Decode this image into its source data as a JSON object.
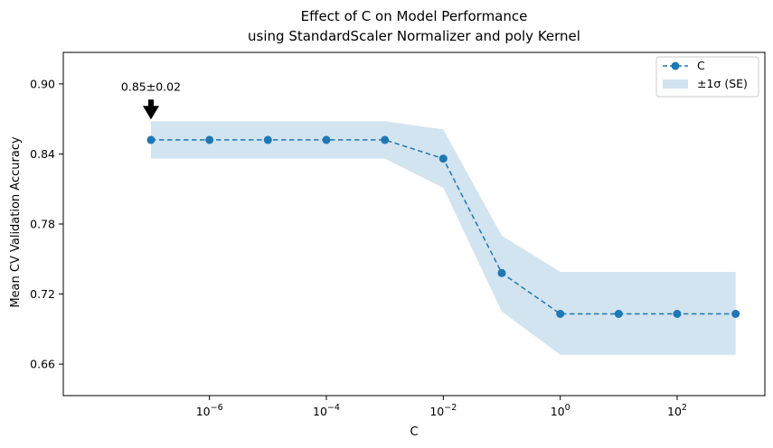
{
  "chart_data": {
    "type": "line",
    "title_lines": [
      "Effect of C on Model Performance",
      "using StandardScaler Normalizer and poly Kernel"
    ],
    "xlabel": "C",
    "ylabel": "Mean CV Validation Accuracy",
    "x_scale": "log",
    "xlim_exp": [
      -8.5,
      3.5
    ],
    "ylim": [
      0.633,
      0.927
    ],
    "x_ticks": [
      {
        "exp": -6,
        "base": "10",
        "sup": "−6"
      },
      {
        "exp": -4,
        "base": "10",
        "sup": "−4"
      },
      {
        "exp": -2,
        "base": "10",
        "sup": "−2"
      },
      {
        "exp": 0,
        "base": "10",
        "sup": "0"
      },
      {
        "exp": 2,
        "base": "10",
        "sup": "2"
      }
    ],
    "y_ticks": [
      {
        "value": 0.66,
        "label": "0.66"
      },
      {
        "value": 0.72,
        "label": "0.72"
      },
      {
        "value": 0.78,
        "label": "0.78"
      },
      {
        "value": 0.84,
        "label": "0.84"
      },
      {
        "value": 0.9,
        "label": "0.90"
      }
    ],
    "grid": false,
    "legend_position": "top-right",
    "series": [
      {
        "name": "C",
        "color": "#1f77b4",
        "style": "dashed-with-circle-markers",
        "x_exp": [
          -7,
          -6,
          -5,
          -4,
          -3,
          -2,
          -1,
          0,
          1,
          2,
          3
        ],
        "y": [
          0.852,
          0.852,
          0.852,
          0.852,
          0.852,
          0.836,
          0.738,
          0.703,
          0.703,
          0.703,
          0.703
        ],
        "y_upper": [
          0.868,
          0.868,
          0.868,
          0.868,
          0.868,
          0.861,
          0.77,
          0.739,
          0.739,
          0.739,
          0.739
        ],
        "y_lower": [
          0.836,
          0.836,
          0.836,
          0.836,
          0.836,
          0.811,
          0.705,
          0.668,
          0.668,
          0.668,
          0.668
        ]
      }
    ],
    "band_legend": "±1σ (SE)",
    "band_color": "#1f77b4",
    "annotation": {
      "text": "0.85±0.02",
      "point_x_exp": -7,
      "point_y": 0.868
    }
  }
}
